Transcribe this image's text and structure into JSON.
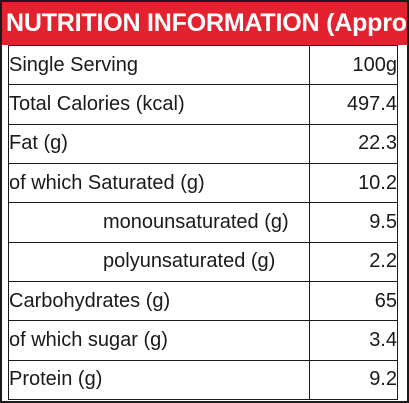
{
  "title": "NUTRITION INFORMATION (Approx)",
  "rows": [
    {
      "label": "Single Serving",
      "value": "100g"
    },
    {
      "label": "Total Calories (kcal)",
      "value": "497.4"
    },
    {
      "label": "Fat (g)",
      "value": "22.3"
    },
    {
      "label": "of which Saturated (g)",
      "value": "10.2"
    },
    {
      "label": "monounsaturated (g)",
      "value": "9.5"
    },
    {
      "label": "polyunsaturated (g)",
      "value": "2.2"
    },
    {
      "label": "Carbohydrates (g)",
      "value": "65"
    },
    {
      "label": "of which sugar (g)",
      "value": "3.4"
    },
    {
      "label": "Protein (g)",
      "value": "9.2"
    }
  ],
  "colors": {
    "header_background": "#e2222f",
    "header_text": "#ffffff",
    "border": "#1a1a1a",
    "text": "#1a1a1a"
  }
}
